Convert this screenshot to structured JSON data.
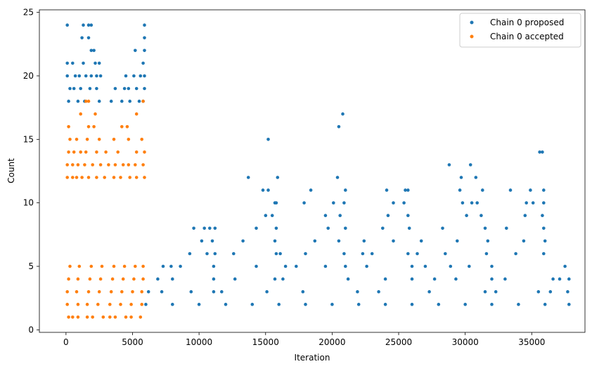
{
  "chart_data": {
    "type": "scatter",
    "title": "",
    "xlabel": "Iteration",
    "ylabel": "Count",
    "xlim": [
      -2000,
      39000
    ],
    "ylim": [
      -0.2,
      25.2
    ],
    "xticks": [
      0,
      5000,
      10000,
      15000,
      20000,
      25000,
      30000,
      35000
    ],
    "yticks": [
      0,
      5,
      10,
      15,
      20,
      25
    ],
    "xtick_labels": [
      "0",
      "5000",
      "10000",
      "15000",
      "20000",
      "25000",
      "30000",
      "35000"
    ],
    "ytick_labels": [
      "0",
      "5",
      "10",
      "15",
      "20",
      "25"
    ],
    "grid": false,
    "legend_position": "top-right",
    "series": [
      {
        "name": "Chain 0 proposed",
        "color": "#1f77b4",
        "points": [
          [
            100,
            24
          ],
          [
            1300,
            24
          ],
          [
            1700,
            24
          ],
          [
            1900,
            24
          ],
          [
            5900,
            24
          ],
          [
            1200,
            23
          ],
          [
            1700,
            23
          ],
          [
            5900,
            23
          ],
          [
            1900,
            22
          ],
          [
            2100,
            22
          ],
          [
            5200,
            22
          ],
          [
            5900,
            22
          ],
          [
            100,
            21
          ],
          [
            500,
            21
          ],
          [
            1300,
            21
          ],
          [
            2200,
            21
          ],
          [
            2500,
            21
          ],
          [
            5800,
            21
          ],
          [
            100,
            20
          ],
          [
            700,
            20
          ],
          [
            1000,
            20
          ],
          [
            1500,
            20
          ],
          [
            1900,
            20
          ],
          [
            2300,
            20
          ],
          [
            2600,
            20
          ],
          [
            4500,
            20
          ],
          [
            5100,
            20
          ],
          [
            5600,
            20
          ],
          [
            5900,
            20
          ],
          [
            300,
            19
          ],
          [
            600,
            19
          ],
          [
            1100,
            19
          ],
          [
            1800,
            19
          ],
          [
            2300,
            19
          ],
          [
            3700,
            19
          ],
          [
            4400,
            19
          ],
          [
            4700,
            19
          ],
          [
            5300,
            19
          ],
          [
            5900,
            19
          ],
          [
            200,
            18
          ],
          [
            900,
            18
          ],
          [
            1400,
            18
          ],
          [
            2500,
            18
          ],
          [
            3400,
            18
          ],
          [
            4200,
            18
          ],
          [
            4800,
            18
          ],
          [
            5500,
            18
          ],
          [
            5800,
            18
          ],
          [
            20800,
            17
          ],
          [
            20500,
            16
          ],
          [
            15200,
            15
          ],
          [
            28800,
            13
          ],
          [
            30400,
            13
          ],
          [
            35600,
            14
          ],
          [
            35800,
            14
          ],
          [
            13700,
            12
          ],
          [
            15900,
            12
          ],
          [
            20400,
            12
          ],
          [
            29700,
            12
          ],
          [
            30800,
            12
          ],
          [
            14800,
            11
          ],
          [
            15200,
            11
          ],
          [
            18400,
            11
          ],
          [
            21000,
            11
          ],
          [
            24100,
            11
          ],
          [
            25500,
            11
          ],
          [
            25700,
            11
          ],
          [
            29600,
            11
          ],
          [
            31300,
            11
          ],
          [
            33400,
            11
          ],
          [
            34900,
            11
          ],
          [
            35900,
            11
          ],
          [
            15700,
            10
          ],
          [
            15800,
            10
          ],
          [
            17900,
            10
          ],
          [
            20100,
            10
          ],
          [
            20900,
            10
          ],
          [
            24600,
            10
          ],
          [
            25400,
            10
          ],
          [
            29800,
            10
          ],
          [
            30500,
            10
          ],
          [
            30900,
            10
          ],
          [
            34600,
            10
          ],
          [
            35100,
            10
          ],
          [
            35900,
            10
          ],
          [
            15000,
            9
          ],
          [
            15500,
            9
          ],
          [
            19500,
            9
          ],
          [
            20600,
            9
          ],
          [
            24200,
            9
          ],
          [
            25700,
            9
          ],
          [
            30100,
            9
          ],
          [
            31200,
            9
          ],
          [
            34500,
            9
          ],
          [
            35800,
            9
          ],
          [
            9600,
            8
          ],
          [
            10400,
            8
          ],
          [
            10800,
            8
          ],
          [
            11200,
            8
          ],
          [
            14300,
            8
          ],
          [
            15800,
            8
          ],
          [
            19700,
            8
          ],
          [
            21000,
            8
          ],
          [
            23800,
            8
          ],
          [
            25800,
            8
          ],
          [
            28300,
            8
          ],
          [
            31500,
            8
          ],
          [
            33100,
            8
          ],
          [
            35900,
            8
          ],
          [
            10200,
            7
          ],
          [
            11000,
            7
          ],
          [
            13300,
            7
          ],
          [
            15700,
            7
          ],
          [
            18700,
            7
          ],
          [
            20500,
            7
          ],
          [
            22400,
            7
          ],
          [
            24600,
            7
          ],
          [
            26700,
            7
          ],
          [
            29400,
            7
          ],
          [
            31700,
            7
          ],
          [
            34400,
            7
          ],
          [
            36000,
            7
          ],
          [
            9300,
            6
          ],
          [
            10600,
            6
          ],
          [
            11200,
            6
          ],
          [
            12600,
            6
          ],
          [
            15800,
            6
          ],
          [
            16100,
            6
          ],
          [
            18000,
            6
          ],
          [
            20900,
            6
          ],
          [
            22300,
            6
          ],
          [
            23000,
            6
          ],
          [
            25700,
            6
          ],
          [
            26400,
            6
          ],
          [
            28500,
            6
          ],
          [
            31600,
            6
          ],
          [
            33800,
            6
          ],
          [
            35900,
            6
          ],
          [
            7300,
            5
          ],
          [
            7900,
            5
          ],
          [
            8600,
            5
          ],
          [
            11100,
            5
          ],
          [
            14300,
            5
          ],
          [
            16500,
            5
          ],
          [
            17300,
            5
          ],
          [
            19500,
            5
          ],
          [
            21000,
            5
          ],
          [
            22600,
            5
          ],
          [
            26000,
            5
          ],
          [
            27000,
            5
          ],
          [
            28900,
            5
          ],
          [
            30300,
            5
          ],
          [
            32000,
            5
          ],
          [
            37500,
            5
          ],
          [
            6900,
            4
          ],
          [
            8000,
            4
          ],
          [
            11100,
            4
          ],
          [
            12700,
            4
          ],
          [
            15700,
            4
          ],
          [
            16300,
            4
          ],
          [
            21200,
            4
          ],
          [
            24000,
            4
          ],
          [
            26000,
            4
          ],
          [
            27700,
            4
          ],
          [
            29300,
            4
          ],
          [
            32000,
            4
          ],
          [
            33000,
            4
          ],
          [
            36600,
            4
          ],
          [
            37100,
            4
          ],
          [
            37800,
            4
          ],
          [
            6200,
            3
          ],
          [
            7200,
            3
          ],
          [
            9400,
            3
          ],
          [
            11100,
            3
          ],
          [
            11700,
            3
          ],
          [
            15100,
            3
          ],
          [
            17800,
            3
          ],
          [
            21900,
            3
          ],
          [
            23500,
            3
          ],
          [
            27300,
            3
          ],
          [
            31500,
            3
          ],
          [
            32300,
            3
          ],
          [
            35500,
            3
          ],
          [
            36400,
            3
          ],
          [
            37700,
            3
          ],
          [
            6000,
            2
          ],
          [
            8000,
            2
          ],
          [
            10000,
            2
          ],
          [
            12000,
            2
          ],
          [
            14000,
            2
          ],
          [
            16000,
            2
          ],
          [
            18000,
            2
          ],
          [
            20000,
            2
          ],
          [
            22000,
            2
          ],
          [
            24000,
            2
          ],
          [
            26000,
            2
          ],
          [
            28000,
            2
          ],
          [
            30000,
            2
          ],
          [
            32000,
            2
          ],
          [
            34000,
            2
          ],
          [
            36000,
            2
          ],
          [
            37800,
            2
          ]
        ]
      },
      {
        "name": "Chain 0 accepted",
        "color": "#ff7f0e",
        "points": [
          [
            1500,
            18
          ],
          [
            1700,
            18
          ],
          [
            5800,
            18
          ],
          [
            1100,
            17
          ],
          [
            2200,
            17
          ],
          [
            5300,
            17
          ],
          [
            200,
            16
          ],
          [
            1700,
            16
          ],
          [
            2100,
            16
          ],
          [
            4200,
            16
          ],
          [
            4600,
            16
          ],
          [
            300,
            15
          ],
          [
            800,
            15
          ],
          [
            1600,
            15
          ],
          [
            2500,
            15
          ],
          [
            3600,
            15
          ],
          [
            4700,
            15
          ],
          [
            5700,
            15
          ],
          [
            200,
            14
          ],
          [
            600,
            14
          ],
          [
            1100,
            14
          ],
          [
            1500,
            14
          ],
          [
            2300,
            14
          ],
          [
            3000,
            14
          ],
          [
            3900,
            14
          ],
          [
            5300,
            14
          ],
          [
            5900,
            14
          ],
          [
            100,
            13
          ],
          [
            500,
            13
          ],
          [
            900,
            13
          ],
          [
            1400,
            13
          ],
          [
            2000,
            13
          ],
          [
            2600,
            13
          ],
          [
            3200,
            13
          ],
          [
            3700,
            13
          ],
          [
            4300,
            13
          ],
          [
            4700,
            13
          ],
          [
            5200,
            13
          ],
          [
            5800,
            13
          ],
          [
            100,
            12
          ],
          [
            500,
            12
          ],
          [
            800,
            12
          ],
          [
            1200,
            12
          ],
          [
            1700,
            12
          ],
          [
            2300,
            12
          ],
          [
            2900,
            12
          ],
          [
            3600,
            12
          ],
          [
            4100,
            12
          ],
          [
            4800,
            12
          ],
          [
            5300,
            12
          ],
          [
            5900,
            12
          ],
          [
            300,
            5
          ],
          [
            1000,
            5
          ],
          [
            1900,
            5
          ],
          [
            2700,
            5
          ],
          [
            3600,
            5
          ],
          [
            4400,
            5
          ],
          [
            5200,
            5
          ],
          [
            5800,
            5
          ],
          [
            200,
            4
          ],
          [
            900,
            4
          ],
          [
            1800,
            4
          ],
          [
            2600,
            4
          ],
          [
            3500,
            4
          ],
          [
            4300,
            4
          ],
          [
            5100,
            4
          ],
          [
            5800,
            4
          ],
          [
            100,
            3
          ],
          [
            800,
            3
          ],
          [
            1700,
            3
          ],
          [
            2500,
            3
          ],
          [
            3400,
            3
          ],
          [
            4200,
            3
          ],
          [
            5000,
            3
          ],
          [
            5700,
            3
          ],
          [
            100,
            2
          ],
          [
            900,
            2
          ],
          [
            1600,
            2
          ],
          [
            2400,
            2
          ],
          [
            3300,
            2
          ],
          [
            4100,
            2
          ],
          [
            4900,
            2
          ],
          [
            5700,
            2
          ],
          [
            200,
            1
          ],
          [
            500,
            1
          ],
          [
            900,
            1
          ],
          [
            1600,
            1
          ],
          [
            2000,
            1
          ],
          [
            2800,
            1
          ],
          [
            3300,
            1
          ],
          [
            3700,
            1
          ],
          [
            4500,
            1
          ],
          [
            4900,
            1
          ],
          [
            5600,
            1
          ]
        ]
      }
    ]
  }
}
